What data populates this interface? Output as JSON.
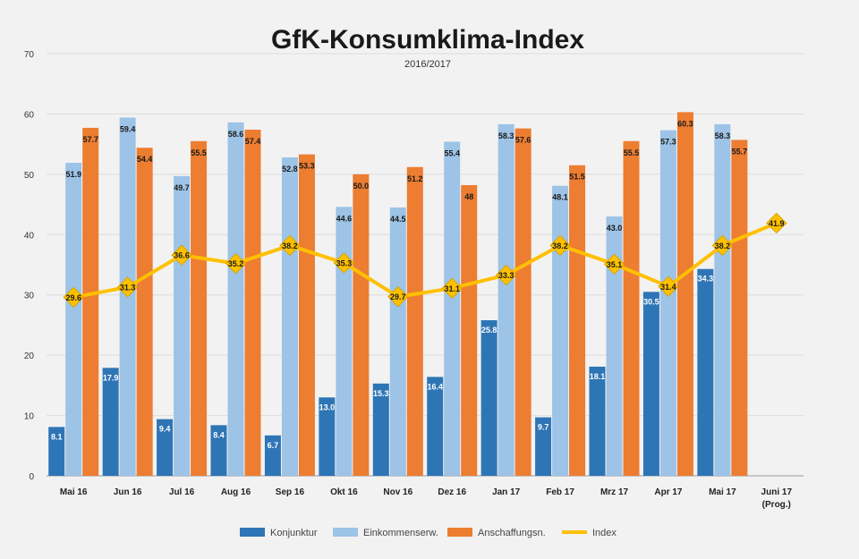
{
  "chart_data": {
    "type": "bar",
    "title": "GfK-Konsumklima-Index",
    "subtitle": "2016/2017",
    "categories": [
      "Mai 16",
      "Jun 16",
      "Jul 16",
      "Aug 16",
      "Sep 16",
      "Okt 16",
      "Nov 16",
      "Dez 16",
      "Jan 17",
      "Feb 17",
      "Mrz 17",
      "Apr 17",
      "Mai 17",
      "Juni 17 (Prog.)"
    ],
    "ylim": [
      0,
      70
    ],
    "yticks": [
      0,
      10,
      20,
      30,
      40,
      50,
      60,
      70
    ],
    "grid": true,
    "legend_position": "bottom",
    "series": [
      {
        "name": "Konjunktur",
        "type": "bar",
        "color": "#2e75b6",
        "values": [
          8.1,
          17.9,
          9.4,
          8.4,
          6.7,
          13.0,
          15.3,
          16.4,
          25.8,
          9.7,
          18.1,
          30.5,
          34.3,
          null
        ],
        "labels": [
          "8.1",
          "17.9",
          "9.4",
          "8.4",
          "6.7",
          "13.0",
          "15.3",
          "16.4",
          "25.8",
          "9.7",
          "18.1",
          "30.5",
          "34.3",
          ""
        ]
      },
      {
        "name": "Einkommenserw.",
        "type": "bar",
        "color": "#9dc3e6",
        "values": [
          51.9,
          59.4,
          49.7,
          58.6,
          52.8,
          44.6,
          44.5,
          55.4,
          58.3,
          48.1,
          43.0,
          57.3,
          58.3,
          null
        ],
        "labels": [
          "51.9",
          "59.4",
          "49.7",
          "58.6",
          "52.8",
          "44.6",
          "44.5",
          "55.4",
          "58.3",
          "48.1",
          "43.0",
          "57.3",
          "58.3",
          ""
        ]
      },
      {
        "name": "Anschaffungsn.",
        "type": "bar",
        "color": "#ed7d31",
        "values": [
          57.7,
          54.4,
          55.5,
          57.4,
          53.3,
          50.0,
          51.2,
          48.2,
          57.6,
          51.5,
          55.5,
          60.3,
          55.7,
          null
        ],
        "labels": [
          "57.7",
          "54.4",
          "55.5",
          "57.4",
          "53.3",
          "50.0",
          "51.2",
          "48",
          "57.6",
          "51.5",
          "55.5",
          "60.3",
          "55.7",
          ""
        ]
      },
      {
        "name": "Index",
        "type": "line",
        "color": "#ffc000",
        "values": [
          29.6,
          31.3,
          36.6,
          35.2,
          38.2,
          35.3,
          29.7,
          31.1,
          33.3,
          38.2,
          35.1,
          31.4,
          38.2,
          41.9
        ],
        "labels": [
          "29.6",
          "31.3",
          "36.6",
          "35.2",
          "38.2",
          "35.3",
          "29.7",
          "31.1",
          "33.3",
          "38.2",
          "35.1",
          "31.4",
          "38.2",
          "41.9"
        ]
      }
    ]
  }
}
